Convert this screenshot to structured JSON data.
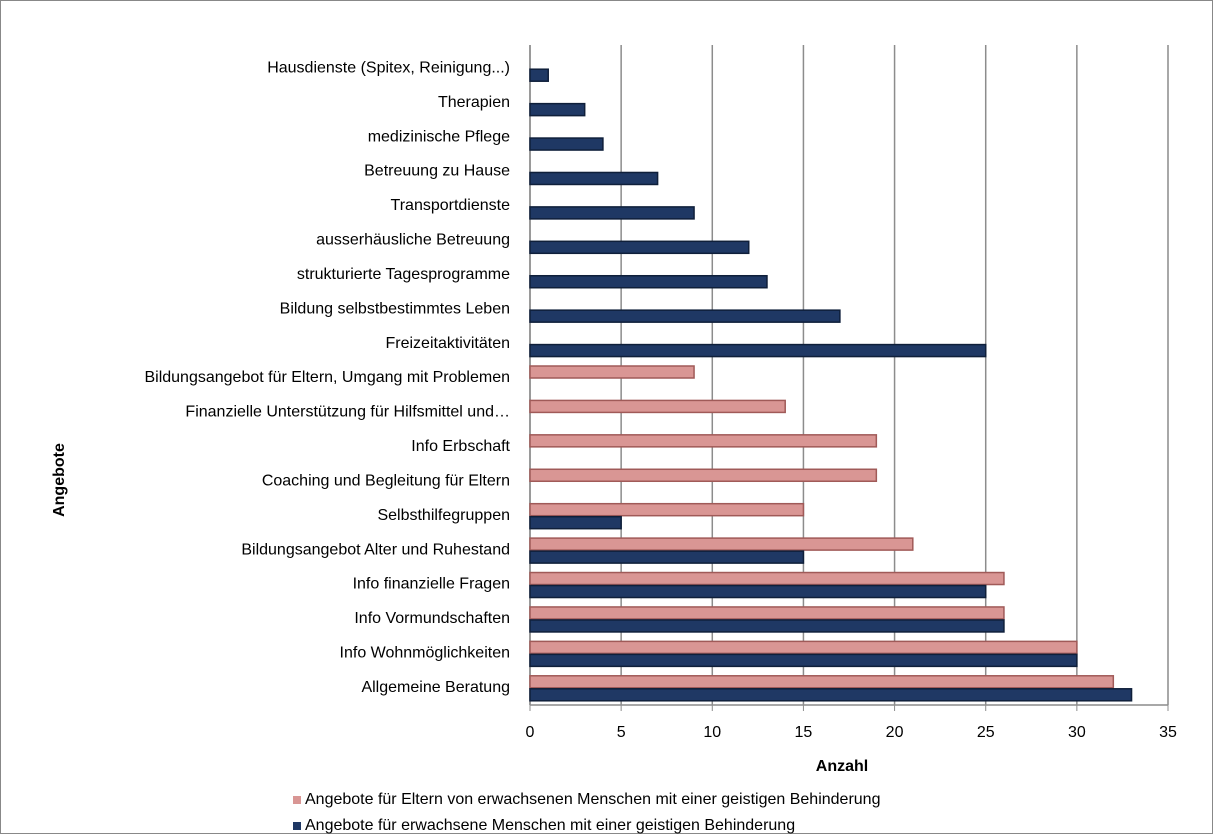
{
  "chart_data": {
    "type": "bar",
    "orientation": "horizontal",
    "x_label": "Anzahl",
    "y_label": "Angebote",
    "categories": [
      "Hausdienste (Spitex, Reinigung...)",
      "Therapien",
      "medizinische Pflege",
      "Betreuung zu Hause",
      "Transportdienste",
      "ausserhäusliche Betreuung",
      "strukturierte Tagesprogramme",
      "Bildung selbstbestimmtes Leben",
      "Freizeitaktivitäten",
      "Bildungsangebot für Eltern, Umgang mit Problemen",
      "Finanzielle Unterstützung für Hilfsmittel und…",
      "Info Erbschaft",
      "Coaching und Begleitung für Eltern",
      "Selbsthilfegruppen",
      "Bildungsangebot Alter und Ruhestand",
      "Info finanzielle Fragen",
      "Info Vormundschaften",
      "Info Wohnmöglichkeiten",
      "Allgemeine Beratung"
    ],
    "series": [
      {
        "name": "Angebote für Eltern von erwachsenen Menschen mit einer geistigen Behinderung",
        "color": "#d99694",
        "values": [
          0,
          0,
          0,
          0,
          0,
          0,
          0,
          0,
          0,
          9,
          14,
          19,
          19,
          15,
          21,
          26,
          26,
          30,
          32
        ]
      },
      {
        "name": "Angebote für erwachsene Menschen mit einer geistigen Behinderung",
        "color": "#1f3864",
        "values": [
          1,
          3,
          4,
          7,
          9,
          12,
          13,
          17,
          25,
          0,
          0,
          0,
          0,
          5,
          15,
          25,
          26,
          30,
          33
        ]
      }
    ],
    "xlim": [
      0,
      35
    ],
    "xticks": [
      0,
      5,
      10,
      15,
      20,
      25,
      30,
      35
    ],
    "grid": true,
    "legend": "bottom"
  }
}
